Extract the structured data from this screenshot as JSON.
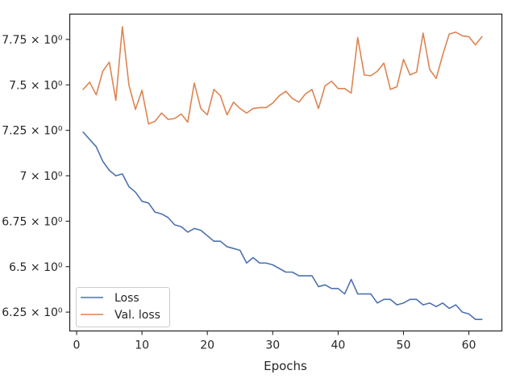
{
  "chart_data": {
    "type": "line",
    "title": "",
    "xlabel": "Epochs",
    "ylabel": "",
    "xlim": [
      -1.05,
      65.05
    ],
    "ylim": [
      6.1463,
      7.8893
    ],
    "xticks": [
      0,
      10,
      20,
      30,
      40,
      50,
      60
    ],
    "xtick_labels": [
      "0",
      "10",
      "20",
      "30",
      "40",
      "50",
      "60"
    ],
    "yticks": [
      6.25,
      6.5,
      6.75,
      7.0,
      7.25,
      7.5,
      7.75
    ],
    "ytick_labels": [
      "6.25 × 10⁰",
      "6.5 × 10⁰",
      "6.75 × 10⁰",
      "7 × 10⁰",
      "7.25 × 10⁰",
      "7.5 × 10⁰",
      "7.75 × 10⁰"
    ],
    "grid": false,
    "legend": {
      "position": "lower-left",
      "entries": [
        "Loss",
        "Val. loss"
      ]
    },
    "colors": {
      "loss": "#4c72b0",
      "val_loss": "#dd8452",
      "axis": "#262626"
    },
    "x": [
      1,
      2,
      3,
      4,
      5,
      6,
      7,
      8,
      9,
      10,
      11,
      12,
      13,
      14,
      15,
      16,
      17,
      18,
      19,
      20,
      21,
      22,
      23,
      24,
      25,
      26,
      27,
      28,
      29,
      30,
      31,
      32,
      33,
      34,
      35,
      36,
      37,
      38,
      39,
      40,
      41,
      42,
      43,
      44,
      45,
      46,
      47,
      48,
      49,
      50,
      51,
      52,
      53,
      54,
      55,
      56,
      57,
      58,
      59,
      60,
      61,
      62
    ],
    "series": [
      {
        "name": "Loss",
        "color": "#4c72b0",
        "values": [
          7.24,
          7.2,
          7.16,
          7.08,
          7.03,
          7.0,
          7.01,
          6.94,
          6.91,
          6.86,
          6.85,
          6.8,
          6.79,
          6.77,
          6.73,
          6.72,
          6.69,
          6.71,
          6.7,
          6.67,
          6.64,
          6.64,
          6.61,
          6.6,
          6.59,
          6.52,
          6.55,
          6.52,
          6.52,
          6.51,
          6.49,
          6.47,
          6.47,
          6.45,
          6.45,
          6.45,
          6.39,
          6.4,
          6.38,
          6.38,
          6.35,
          6.43,
          6.35,
          6.35,
          6.35,
          6.3,
          6.32,
          6.32,
          6.29,
          6.3,
          6.32,
          6.32,
          6.29,
          6.3,
          6.28,
          6.3,
          6.27,
          6.29,
          6.25,
          6.24,
          6.21,
          6.21
        ]
      },
      {
        "name": "Val. loss",
        "color": "#dd8452",
        "values": [
          7.475,
          7.515,
          7.445,
          7.575,
          7.625,
          7.415,
          7.82,
          7.5,
          7.365,
          7.47,
          7.285,
          7.3,
          7.345,
          7.31,
          7.315,
          7.34,
          7.295,
          7.51,
          7.37,
          7.335,
          7.475,
          7.44,
          7.335,
          7.405,
          7.37,
          7.345,
          7.37,
          7.375,
          7.375,
          7.4,
          7.44,
          7.465,
          7.425,
          7.405,
          7.45,
          7.475,
          7.37,
          7.495,
          7.52,
          7.48,
          7.48,
          7.455,
          7.76,
          7.555,
          7.55,
          7.575,
          7.62,
          7.475,
          7.49,
          7.64,
          7.555,
          7.57,
          7.785,
          7.585,
          7.535,
          7.665,
          7.78,
          7.79,
          7.77,
          7.765,
          7.72,
          7.765
        ]
      }
    ]
  }
}
